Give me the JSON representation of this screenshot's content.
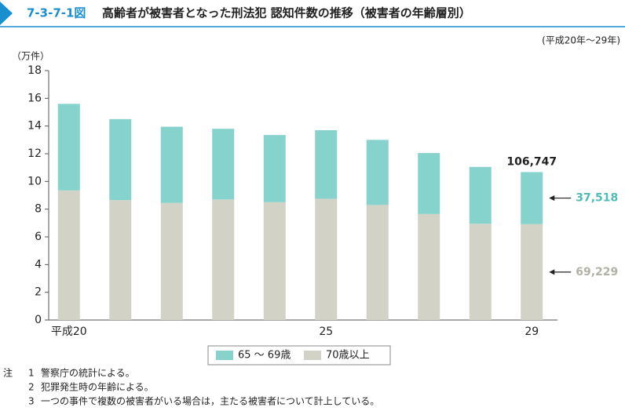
{
  "chart_data": {
    "type": "stacked_bar",
    "figure_number": "7-3-7-1図",
    "title": "高齢者が被害者となった刑法犯 認知件数の推移（被害者の年齢層別）",
    "subtitle": "(平成20年～29年)",
    "y_label": "（万件）",
    "categories": [
      "平成20",
      null,
      null,
      null,
      null,
      "25",
      null,
      null,
      null,
      "29"
    ],
    "series": [
      {
        "name": "65 ～ 69歳",
        "color": "#86d2cc",
        "label_color": "#4fbdb5",
        "values": [
          6.25,
          5.85,
          5.5,
          5.1,
          4.85,
          4.95,
          4.7,
          4.4,
          4.1,
          3.7518
        ],
        "value_labels": [
          null,
          null,
          null,
          null,
          null,
          null,
          null,
          null,
          null,
          "37,518"
        ]
      },
      {
        "name": "70歳以上",
        "color": "#d2d2c6",
        "label_color": "#b2b2a6",
        "values": [
          9.35,
          8.65,
          8.45,
          8.7,
          8.5,
          8.75,
          8.3,
          7.65,
          6.95,
          6.9229
        ],
        "value_labels": [
          null,
          null,
          null,
          null,
          null,
          null,
          null,
          null,
          null,
          "69,229"
        ]
      }
    ],
    "total_label": {
      "value": 10.6747,
      "label": "106,747",
      "index": 9
    },
    "ylim": [
      0,
      18
    ],
    "yticks": [
      0,
      2,
      4,
      6,
      8,
      10,
      12,
      14,
      16,
      18
    ],
    "notes_heading": "注",
    "notes": [
      {
        "number": "1",
        "text": "警察庁の統計による。"
      },
      {
        "number": "2",
        "text": "犯罪発生時の年齢による。"
      },
      {
        "number": "3",
        "text": "一つの事件で複数の被害者がいる場合は，主たる被害者について計上している。"
      }
    ]
  }
}
